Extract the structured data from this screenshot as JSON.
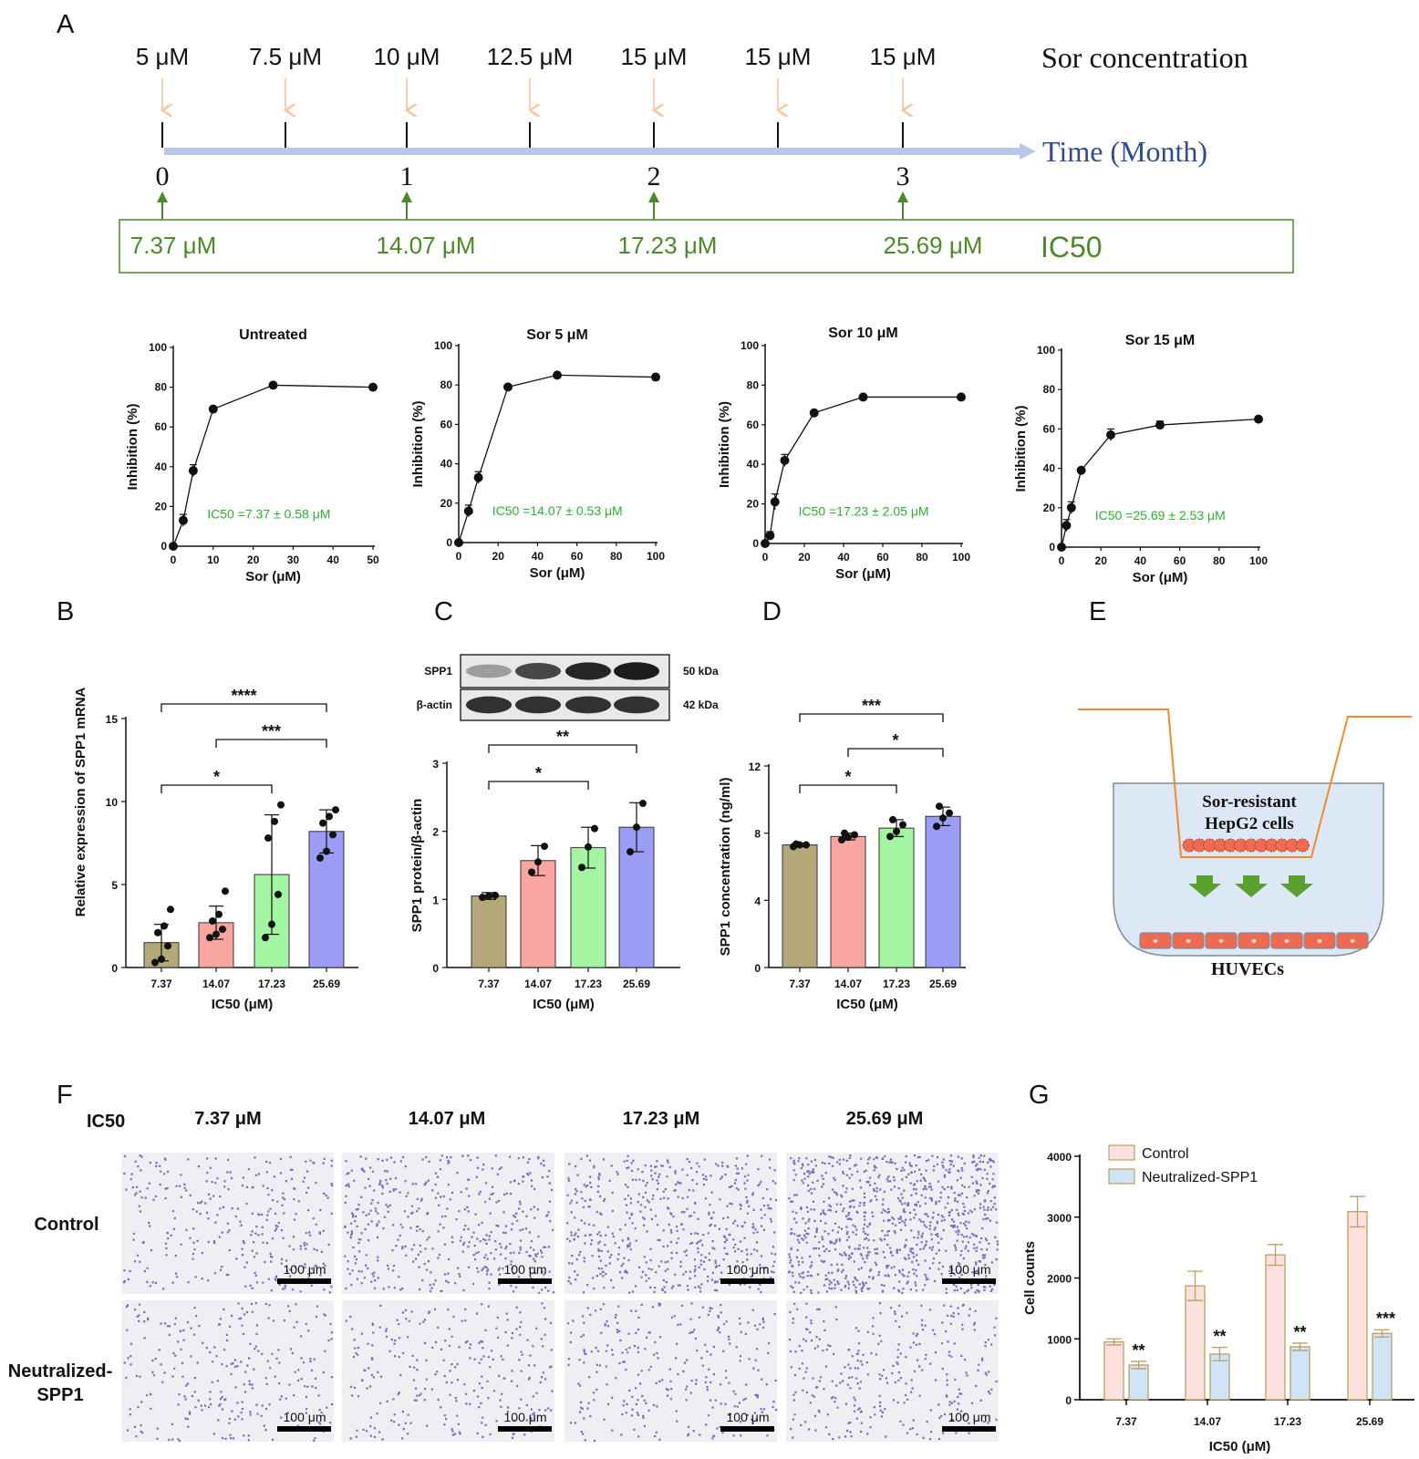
{
  "panelA": {
    "letter": "A",
    "concentrations": [
      {
        "label": "5 μM"
      },
      {
        "label": "7.5 μM"
      },
      {
        "label": "10 μM"
      },
      {
        "label": "12.5 μM"
      },
      {
        "label": "15 μM"
      },
      {
        "label": "15 μM"
      },
      {
        "label": "15 μM"
      }
    ],
    "sor_label": "Sor concentration",
    "time_label": "Time (Month)",
    "months": [
      "0",
      "1",
      "2",
      "3"
    ],
    "ic50_values": [
      "7.37 μM",
      "14.07 μM",
      "17.23 μM",
      "25.69 μM"
    ],
    "ic50_label": "IC50",
    "colors": {
      "conc_arrow": "#f5c9a5",
      "timeline": "#b8c7e6",
      "time_text": "#2e4d8e",
      "ic50": "#4a8a2a"
    }
  },
  "chart_data": [
    {
      "id": "curve-untreated",
      "type": "line",
      "title": "Untreated",
      "xlabel": "Sor (μM)",
      "ylabel": "Inhibition (%)",
      "xlim": [
        0,
        50
      ],
      "xticks": [
        0,
        10,
        20,
        30,
        40,
        50
      ],
      "ylim": [
        0,
        100
      ],
      "yticks": [
        0,
        20,
        40,
        60,
        80,
        100
      ],
      "x": [
        0,
        2.5,
        5,
        10,
        25,
        50
      ],
      "y": [
        0,
        13,
        38,
        69,
        81,
        80
      ],
      "err": [
        0,
        3,
        3,
        1,
        1,
        1
      ],
      "annotation": "IC50 =7.37 ± 0.58 μM"
    },
    {
      "id": "curve-sor5",
      "type": "line",
      "title": "Sor 5 μM",
      "xlabel": "Sor (μM)",
      "ylabel": "Inhibition (%)",
      "xlim": [
        0,
        100
      ],
      "xticks": [
        0,
        20,
        40,
        60,
        80,
        100
      ],
      "ylim": [
        0,
        100
      ],
      "yticks": [
        0,
        20,
        40,
        60,
        80,
        100
      ],
      "x": [
        0,
        5,
        10,
        25,
        50,
        100
      ],
      "y": [
        0,
        16,
        33,
        79,
        85,
        84
      ],
      "err": [
        0,
        3,
        3,
        1,
        1,
        1
      ],
      "annotation": "IC50 =14.07 ± 0.53 μM"
    },
    {
      "id": "curve-sor10",
      "type": "line",
      "title": "Sor 10 μM",
      "xlabel": "Sor (μM)",
      "ylabel": "Inhibition (%)",
      "xlim": [
        0,
        100
      ],
      "xticks": [
        0,
        20,
        40,
        60,
        80,
        100
      ],
      "ylim": [
        0,
        100
      ],
      "yticks": [
        0,
        20,
        40,
        60,
        80,
        100
      ],
      "x": [
        0,
        2.5,
        5,
        10,
        25,
        50,
        100
      ],
      "y": [
        0,
        4,
        21,
        42,
        66,
        74,
        74
      ],
      "err": [
        0,
        2,
        4,
        3,
        1,
        1,
        1
      ],
      "annotation": "IC50 =17.23 ± 2.05 μM"
    },
    {
      "id": "curve-sor15",
      "type": "line",
      "title": "Sor 15 μM",
      "xlabel": "Sor (μM)",
      "ylabel": "Inhibition (%)",
      "xlim": [
        0,
        100
      ],
      "xticks": [
        0,
        20,
        40,
        60,
        80,
        100
      ],
      "ylim": [
        0,
        100
      ],
      "yticks": [
        0,
        20,
        40,
        60,
        80,
        100
      ],
      "x": [
        0,
        2.5,
        5,
        10,
        25,
        50,
        100
      ],
      "y": [
        0,
        11,
        20,
        39,
        57,
        62,
        65
      ],
      "err": [
        0,
        3,
        3,
        1,
        3,
        2,
        1
      ],
      "annotation": "IC50 =25.69 ± 2.53 μM"
    },
    {
      "id": "bar-mrna",
      "type": "bar",
      "letter": "B",
      "categories": [
        "7.37",
        "14.07",
        "17.23",
        "25.69"
      ],
      "values": [
        1.5,
        2.7,
        5.6,
        8.2
      ],
      "err": [
        1.1,
        1.0,
        3.6,
        1.3
      ],
      "points": [
        [
          0.3,
          0.5,
          1.3,
          2.1,
          2.5,
          3.5
        ],
        [
          1.8,
          2.0,
          2.3,
          2.8,
          3.2,
          4.6
        ],
        [
          1.8,
          2.6,
          4.4,
          7.8,
          8.8,
          9.8
        ],
        [
          6.6,
          7.0,
          8.0,
          8.7,
          9.1,
          9.5
        ]
      ],
      "xlabel": "IC50 (μM)",
      "ylabel": "Relative expression of SPP1 mRNA",
      "ylim": [
        0,
        15
      ],
      "yticks": [
        0,
        5,
        10,
        15
      ],
      "sig": [
        {
          "from": 0,
          "to": 3,
          "label": "****",
          "level": 15.2
        },
        {
          "from": 1,
          "to": 3,
          "label": "***",
          "level": 13.4
        },
        {
          "from": 0,
          "to": 2,
          "label": "*",
          "level": 11.0
        }
      ]
    },
    {
      "id": "bar-protein",
      "type": "bar",
      "letter": "C",
      "categories": [
        "7.37",
        "14.07",
        "17.23",
        "25.69"
      ],
      "values": [
        1.05,
        1.57,
        1.76,
        2.06
      ],
      "err": [
        0.05,
        0.22,
        0.3,
        0.36
      ],
      "points": [
        [
          1.03,
          1.05,
          1.06
        ],
        [
          1.4,
          1.55,
          1.78
        ],
        [
          1.47,
          1.77,
          2.04
        ],
        [
          1.7,
          2.06,
          2.41
        ]
      ],
      "xlabel": "IC50 (μM)",
      "ylabel": "SPP1 protein/β-actin",
      "ylim": [
        0,
        3
      ],
      "yticks": [
        0,
        1,
        2,
        3
      ],
      "sig": [
        {
          "from": 0,
          "to": 3,
          "label": "**",
          "level": 3.3
        },
        {
          "from": 0,
          "to": 2,
          "label": "*",
          "level": 2.75
        }
      ]
    },
    {
      "id": "bar-elisa",
      "type": "bar",
      "letter": "D",
      "categories": [
        "7.37",
        "14.07",
        "17.23",
        "25.69"
      ],
      "values": [
        7.3,
        7.8,
        8.3,
        9.0
      ],
      "err": [
        0.1,
        0.2,
        0.5,
        0.55
      ],
      "points": [
        [
          7.2,
          7.3,
          7.3,
          7.35
        ],
        [
          7.6,
          7.75,
          7.9,
          8.0
        ],
        [
          7.8,
          8.1,
          8.5,
          8.8
        ],
        [
          8.4,
          8.9,
          9.2,
          9.6
        ]
      ],
      "xlabel": "IC50 (μM)",
      "ylabel": "SPP1 concentration (ng/ml)",
      "ylim": [
        0,
        12
      ],
      "yticks": [
        0,
        4,
        8,
        12
      ],
      "sig": [
        {
          "from": 0,
          "to": 3,
          "label": "***",
          "level": 15.5
        },
        {
          "from": 1,
          "to": 3,
          "label": "*",
          "level": 13.4
        },
        {
          "from": 0,
          "to": 2,
          "label": "*",
          "level": 11.0
        }
      ]
    },
    {
      "id": "bar-cellcounts",
      "type": "bar",
      "letter": "G",
      "categories": [
        "7.37",
        "14.07",
        "17.23",
        "25.69"
      ],
      "series": [
        {
          "name": "Control",
          "values": [
            950,
            1870,
            2380,
            3090
          ],
          "err": [
            50,
            240,
            170,
            250
          ],
          "color": "#fde1de"
        },
        {
          "name": "Neutralized-SPP1",
          "values": [
            570,
            750,
            870,
            1090
          ],
          "err": [
            60,
            110,
            60,
            60
          ],
          "color": "#cfe4f7"
        }
      ],
      "sig": [
        "**",
        "**",
        "**",
        "***"
      ],
      "xlabel": "IC50 (μM)",
      "ylabel": "Cell counts",
      "ylim": [
        0,
        4000
      ],
      "yticks": [
        0,
        1000,
        2000,
        3000,
        4000
      ],
      "legend": "top-left"
    }
  ],
  "barColors": [
    "#b5a878",
    "#f9a5a2",
    "#a4f5a2",
    "#9b9cf6"
  ],
  "westernBlot": {
    "bands": [
      "SPP1",
      "β-actin"
    ],
    "sizes": [
      "50 kDa",
      "42 kDa"
    ]
  },
  "panelE": {
    "letter": "E",
    "insert_label_line1": "Sor-resistant",
    "insert_label_line2": "HepG2 cells",
    "bottom_label": "HUVECs",
    "colors": {
      "insert": "#f08a2c",
      "medium": "#dce8f5",
      "arrow": "#5aa02c",
      "cells": "#f06a50"
    }
  },
  "panelF": {
    "letter": "F",
    "header": "IC50",
    "columns": [
      "7.37 μM",
      "14.07 μM",
      "17.23 μM",
      "25.69 μM"
    ],
    "rows": [
      "Control",
      "Neutralized-SPP1"
    ],
    "row_line1": [
      "Control",
      "Neutralized-"
    ],
    "row_line2": [
      "",
      "SPP1"
    ],
    "scale_label": "100 μm",
    "densities": [
      [
        0.35,
        0.5,
        0.6,
        1.0
      ],
      [
        0.3,
        0.3,
        0.32,
        0.35
      ]
    ]
  }
}
